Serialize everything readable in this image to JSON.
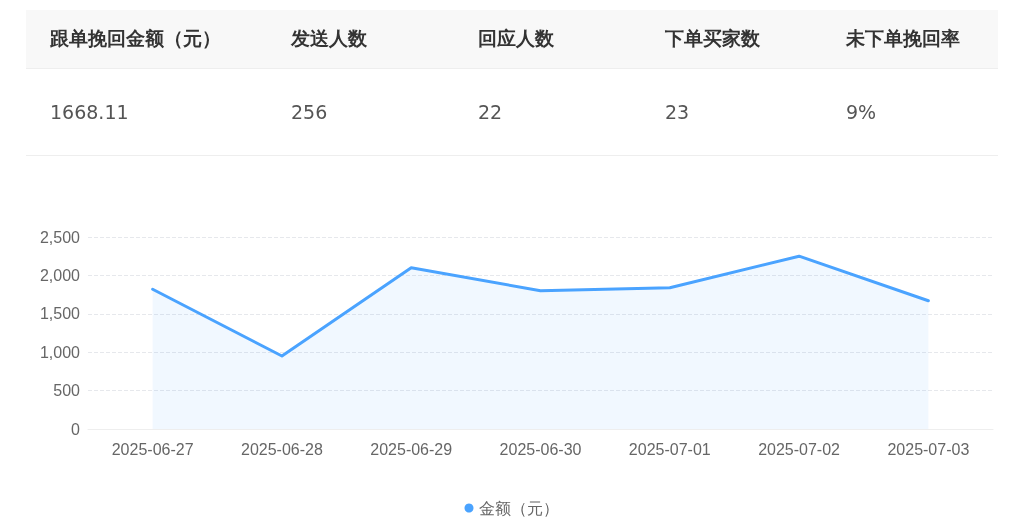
{
  "chart_data": [
    {
      "type": "other",
      "categories": [
        "跟单挽回金额（元）",
        "发送人数",
        "回应人数",
        "下单买家数",
        "未下单挽回率"
      ],
      "value_labels": [
        "1668.11",
        "256",
        "22",
        "23",
        "9%"
      ]
    },
    {
      "type": "area",
      "categories": [
        "2025-06-27",
        "2025-06-28",
        "2025-06-29",
        "2025-06-30",
        "2025-07-01",
        "2025-07-02",
        "2025-07-03"
      ],
      "series": [
        {
          "name": "金额（元）",
          "color": "#4aa3ff",
          "values": [
            1820,
            950,
            2100,
            1800,
            1840,
            2250,
            1670
          ]
        }
      ],
      "ylim": [
        0,
        2500
      ],
      "yticks": [
        0,
        500,
        {
          "value": 1000,
          "label": "1,000"
        },
        {
          "value": 1500,
          "label": "1,500"
        },
        {
          "value": 2000,
          "label": "2,000"
        },
        {
          "value": 2500,
          "label": "2,500"
        }
      ],
      "grid": "y",
      "legend": "bottom",
      "marker": "none",
      "line_style": "solid"
    }
  ]
}
